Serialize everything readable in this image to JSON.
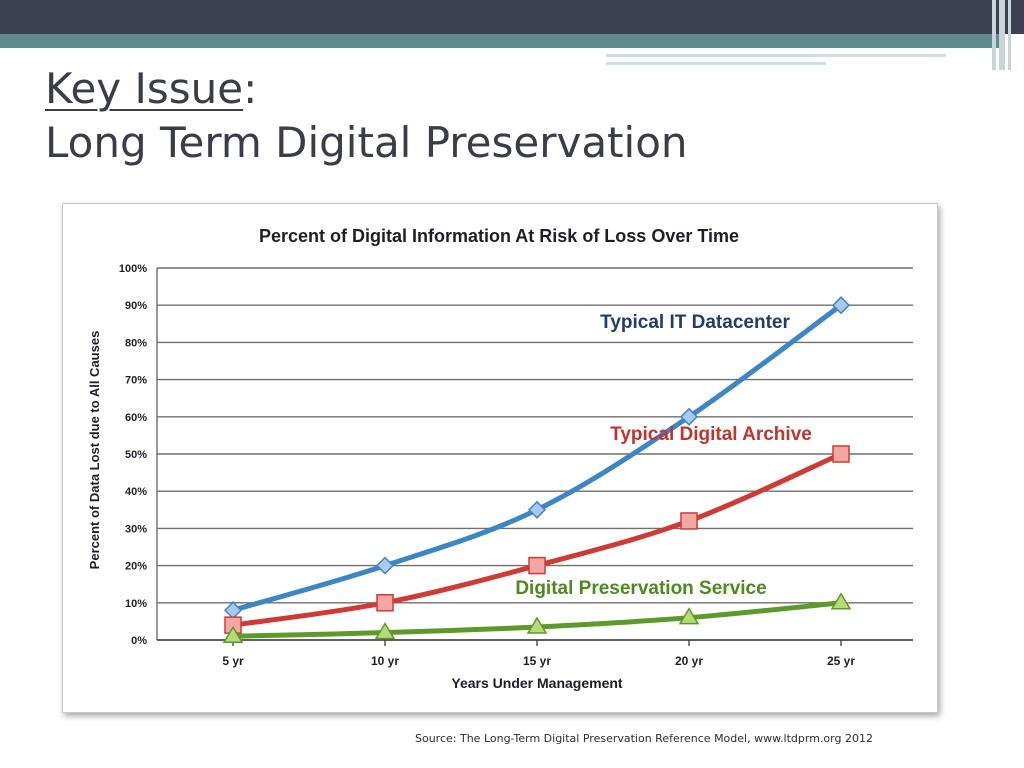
{
  "slide": {
    "title_keyword": "Key Issue",
    "title_colon": ":",
    "title_line2": "Long Term Digital Preservation",
    "source": "Source: The Long-Term Digital Preservation Reference Model, www.ltdprm.org 2012"
  },
  "chart_data": {
    "type": "line",
    "title": "Percent of Digital Information At Risk of Loss Over Time",
    "xlabel": "Years Under Management",
    "ylabel": "Percent of Data Lost due to All Causes",
    "categories": [
      "5 yr",
      "10 yr",
      "15 yr",
      "20 yr",
      "25 yr"
    ],
    "yticks": [
      "0%",
      "10%",
      "20%",
      "30%",
      "40%",
      "50%",
      "60%",
      "70%",
      "80%",
      "90%",
      "100%"
    ],
    "ylim": [
      0,
      100
    ],
    "grid": true,
    "series": [
      {
        "name": "Typical IT Datacenter",
        "values": [
          8,
          20,
          35,
          60,
          90
        ],
        "color": "#3d86c6",
        "marker": "diamond"
      },
      {
        "name": "Typical Digital Archive",
        "values": [
          4,
          10,
          20,
          32,
          50
        ],
        "color": "#d03a35",
        "marker": "square"
      },
      {
        "name": "Digital Preservation Service",
        "values": [
          1,
          2,
          3.5,
          6,
          10
        ],
        "color": "#5c9a2a",
        "marker": "triangle"
      }
    ]
  },
  "colors": {
    "topbar": "#3d3f52",
    "teal": "#5e8c8f",
    "title_text": "#3a3c4a"
  }
}
